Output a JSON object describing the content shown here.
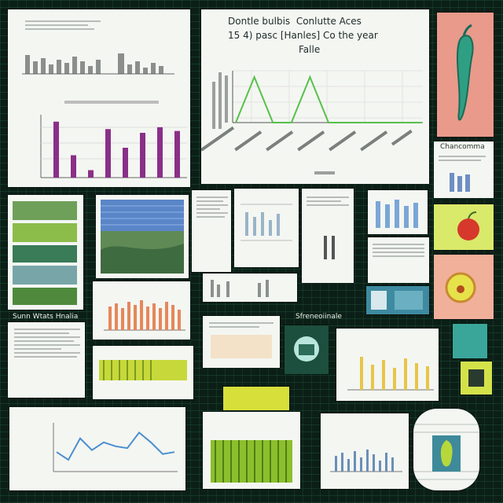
{
  "main_chart": {
    "title_line1": "Dontle bulbis  Conlutte Aces",
    "title_line2": "15 4) pasc [Hanles] Co the year",
    "title_line3": "Falle"
  },
  "captions": {
    "row4_left": "Sunn Wtats Hnalia",
    "row4_middle": "Sfreneoiinale",
    "right_small": "Chancomma"
  },
  "chart_data": [
    {
      "type": "line",
      "series": [
        {
          "values": [
            0,
            3,
            0,
            0,
            3,
            0,
            0,
            0,
            0,
            0,
            0
          ]
        }
      ],
      "ylim": [
        0,
        3
      ]
    },
    {
      "type": "bar",
      "series": [
        {
          "values": [
            3,
            1.2,
            0.4,
            2.6,
            1.6,
            2.4,
            2.7,
            2.5
          ]
        }
      ],
      "ylim": [
        0,
        3.2
      ]
    },
    {
      "type": "line",
      "series": [
        {
          "values": [
            2,
            1.2,
            3.4,
            2.2,
            3.0,
            2.6,
            2.4,
            4.0,
            3.0,
            1.8,
            2.0
          ]
        }
      ],
      "ylim": [
        0,
        5
      ]
    }
  ],
  "colors": {
    "background": "#0b1f17",
    "panel": "#f4f6f2",
    "green_line": "#57c04a",
    "purple_bar": "#8a2f88",
    "orange_bar": "#e6875a",
    "blue_line": "#4a8ed0",
    "yellow_bar": "#e8c548"
  },
  "icons": {
    "pepper": "pepper-icon",
    "apple": "apple-icon",
    "pear": "pear-icon"
  }
}
